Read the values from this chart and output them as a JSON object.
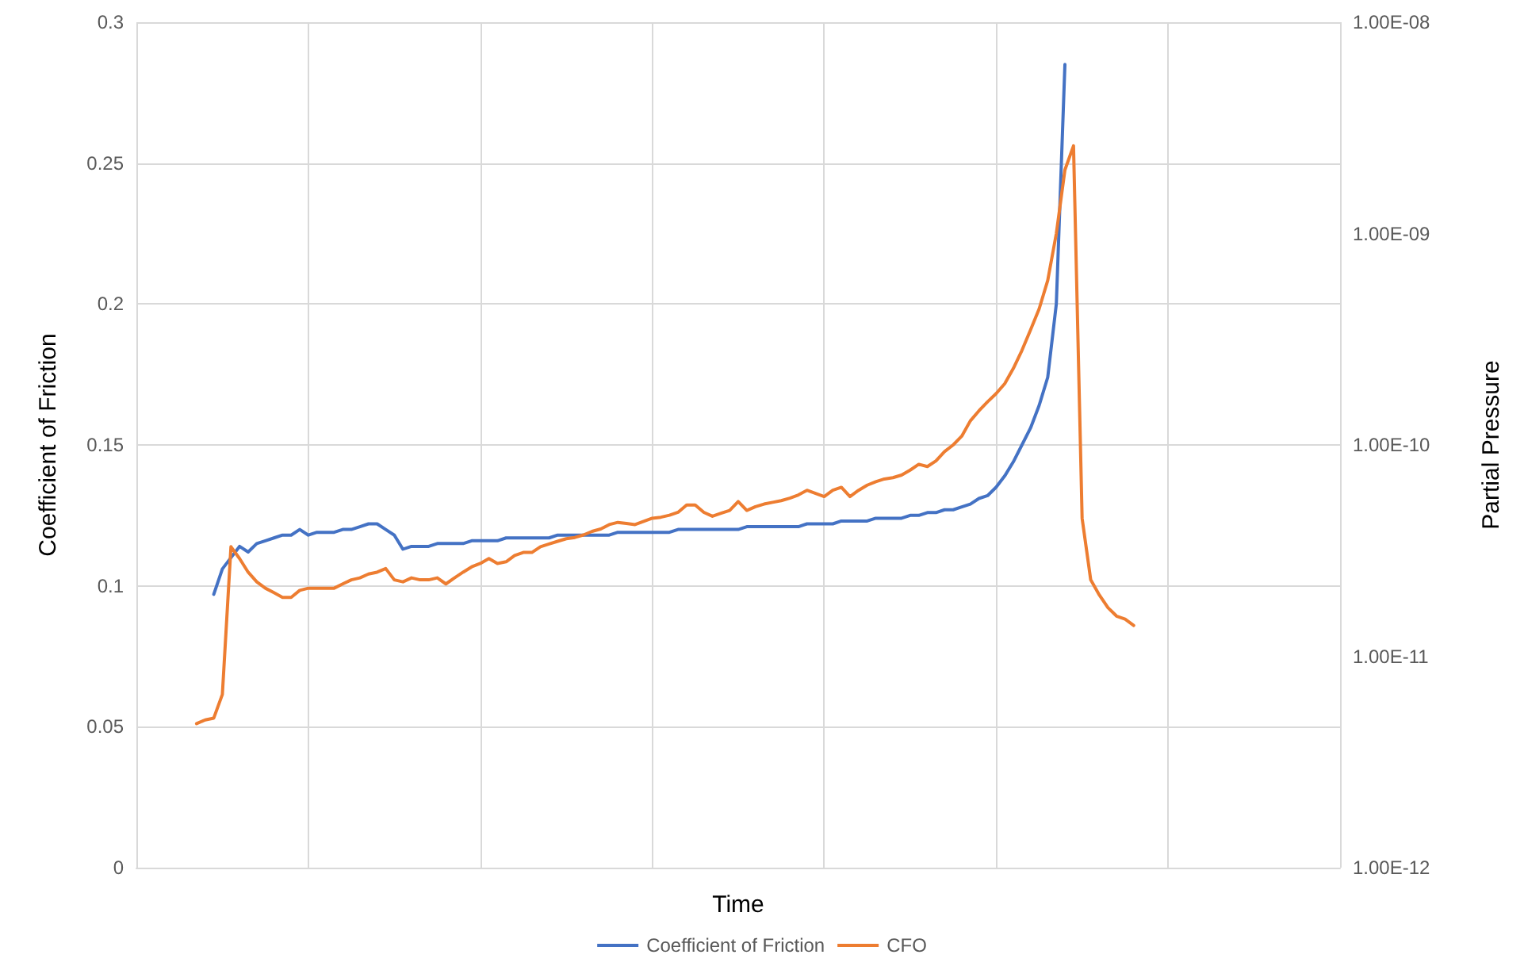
{
  "chart_data": {
    "type": "line",
    "xlabel": "Time",
    "ylabel": "Coefficient of Friction",
    "y2label": "Partial Pressure",
    "categories": [
      null,
      null,
      null,
      null,
      null,
      null,
      null,
      null,
      null,
      null,
      null,
      null,
      null,
      null,
      null,
      null,
      null,
      null,
      null,
      null,
      null,
      null,
      null,
      null,
      null,
      null,
      null,
      null,
      null,
      null,
      null,
      null,
      null,
      null,
      null,
      null,
      null,
      null,
      null,
      null,
      null,
      null,
      null,
      null,
      null,
      null,
      null,
      null,
      null,
      null,
      null,
      null,
      null,
      null,
      null,
      null,
      null,
      null,
      null,
      null,
      null,
      null,
      null,
      null,
      null,
      null,
      null,
      null,
      null,
      null,
      null,
      null,
      null,
      null,
      null,
      null,
      null,
      null,
      null,
      null,
      null,
      null,
      null,
      null,
      null,
      null,
      null,
      null,
      null,
      null,
      null,
      null,
      null,
      null,
      null,
      null,
      null,
      null,
      null,
      null,
      null,
      null,
      null,
      null,
      null,
      null,
      null,
      null,
      null,
      null,
      null,
      null,
      null,
      null,
      null,
      null,
      null,
      null,
      null,
      null,
      null,
      null,
      null,
      null,
      null,
      null,
      null,
      null,
      null,
      null,
      null,
      null,
      null,
      null,
      null,
      null,
      null,
      null,
      null,
      null,
      null
    ],
    "ylim": [
      0,
      0.3
    ],
    "yticks": [
      0,
      0.05,
      0.1,
      0.15,
      0.2,
      0.25,
      0.3
    ],
    "y2lim": [
      1e-12,
      1e-08
    ],
    "y2ticks": [
      {
        "value": 1e-12,
        "label": "1.00E-12"
      },
      {
        "value": 1e-11,
        "label": "1.00E-11"
      },
      {
        "value": 1e-10,
        "label": "1.00E-10"
      },
      {
        "value": 1e-09,
        "label": "1.00E-09"
      },
      {
        "value": 1e-08,
        "label": "1.00E-08"
      }
    ],
    "log": "y2",
    "grid": true,
    "legend": "bottom",
    "marker": "none",
    "line_style": "solid",
    "series": [
      {
        "name": "Coefficient of Friction",
        "color": "#4472c4",
        "values": [
          null,
          null,
          null,
          null,
          null,
          null,
          null,
          null,
          null,
          0.097,
          0.106,
          0.11,
          0.114,
          0.112,
          0.115,
          0.116,
          0.117,
          0.118,
          0.118,
          0.12,
          0.118,
          0.119,
          0.119,
          0.119,
          0.12,
          0.12,
          0.121,
          0.122,
          0.122,
          0.12,
          0.118,
          0.113,
          0.114,
          0.114,
          0.114,
          0.115,
          0.115,
          0.115,
          0.115,
          0.116,
          0.116,
          0.116,
          0.116,
          0.117,
          0.117,
          0.117,
          0.117,
          0.117,
          0.117,
          0.118,
          0.118,
          0.118,
          0.118,
          0.118,
          0.118,
          0.118,
          0.119,
          0.119,
          0.119,
          0.119,
          0.119,
          0.119,
          0.119,
          0.12,
          0.12,
          0.12,
          0.12,
          0.12,
          0.12,
          0.12,
          0.12,
          0.121,
          0.121,
          0.121,
          0.121,
          0.121,
          0.121,
          0.121,
          0.122,
          0.122,
          0.122,
          0.122,
          0.123,
          0.123,
          0.123,
          0.123,
          0.124,
          0.124,
          0.124,
          0.124,
          0.125,
          0.125,
          0.126,
          0.126,
          0.127,
          0.127,
          0.128,
          0.129,
          0.131,
          0.132,
          0.135,
          0.139,
          0.144,
          0.15,
          0.156,
          0.164,
          0.174,
          0.2,
          0.285,
          null,
          null,
          null,
          null,
          null,
          null,
          null,
          null,
          null,
          null,
          null,
          null,
          null,
          null,
          null,
          null,
          null,
          null,
          null,
          null,
          null,
          null,
          null,
          null,
          null,
          null,
          null,
          null,
          null,
          null,
          null,
          null
        ]
      },
      {
        "name": "CFO",
        "color": "#ed7d31",
        "axis": "y2",
        "values": [
          null,
          null,
          null,
          null,
          null,
          null,
          null,
          4.8e-12,
          5e-12,
          5.1e-12,
          6.6e-12,
          3.3e-11,
          2.9e-11,
          2.5e-11,
          2.25e-11,
          2.1e-11,
          2e-11,
          1.9e-11,
          1.9e-11,
          2.05e-11,
          2.1e-11,
          2.1e-11,
          2.1e-11,
          2.1e-11,
          2.2e-11,
          2.3e-11,
          2.35e-11,
          2.45e-11,
          2.5e-11,
          2.6e-11,
          2.3e-11,
          2.25e-11,
          2.35e-11,
          2.3e-11,
          2.3e-11,
          2.35e-11,
          2.2e-11,
          2.35e-11,
          2.5e-11,
          2.65e-11,
          2.75e-11,
          2.9e-11,
          2.75e-11,
          2.8e-11,
          3e-11,
          3.1e-11,
          3.1e-11,
          3.3e-11,
          3.4e-11,
          3.5e-11,
          3.6e-11,
          3.65e-11,
          3.75e-11,
          3.9e-11,
          4e-11,
          4.2e-11,
          4.3e-11,
          4.25e-11,
          4.2e-11,
          4.35e-11,
          4.5e-11,
          4.55e-11,
          4.65e-11,
          4.8e-11,
          5.2e-11,
          5.2e-11,
          4.8e-11,
          4.6e-11,
          4.75e-11,
          4.9e-11,
          5.4e-11,
          4.9e-11,
          5.1e-11,
          5.25e-11,
          5.35e-11,
          5.45e-11,
          5.6e-11,
          5.8e-11,
          6.1e-11,
          5.9e-11,
          5.7e-11,
          6.1e-11,
          6.3e-11,
          5.7e-11,
          6.1e-11,
          6.45e-11,
          6.7e-11,
          6.9e-11,
          7e-11,
          7.2e-11,
          7.6e-11,
          8.1e-11,
          7.9e-11,
          8.4e-11,
          9.3e-11,
          1e-10,
          1.1e-10,
          1.3e-10,
          1.45e-10,
          1.6e-10,
          1.75e-10,
          1.95e-10,
          2.3e-10,
          2.8e-10,
          3.5e-10,
          4.4e-10,
          6e-10,
          1e-09,
          2e-09,
          2.6e-09,
          4.5e-11,
          2.3e-11,
          1.95e-11,
          1.7e-11,
          1.55e-11,
          1.5e-11,
          1.4e-11,
          null,
          null,
          null,
          null,
          null,
          null,
          null,
          null,
          null,
          null,
          null,
          null,
          null,
          null,
          null,
          null,
          null,
          null,
          null,
          null,
          null,
          null,
          null,
          null
        ]
      }
    ]
  }
}
